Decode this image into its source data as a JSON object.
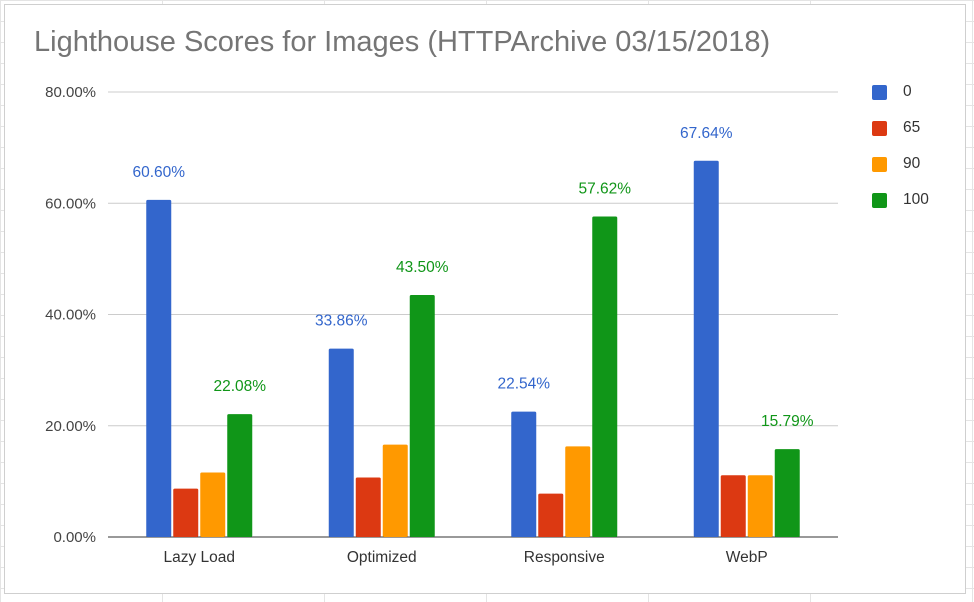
{
  "chart_data": {
    "type": "bar",
    "title": "Lighthouse Scores for Images (HTTPArchive 03/15/2018)",
    "categories": [
      "Lazy Load",
      "Optimized",
      "Responsive",
      "WebP"
    ],
    "series": [
      {
        "name": "0",
        "color": "#3366cc",
        "values": [
          60.6,
          33.86,
          22.54,
          67.64
        ],
        "labels": [
          "60.60%",
          "33.86%",
          "22.54%",
          "67.64%"
        ]
      },
      {
        "name": "65",
        "color": "#dc3912",
        "values": [
          8.7,
          10.7,
          7.8,
          11.1
        ]
      },
      {
        "name": "90",
        "color": "#ff9900",
        "values": [
          11.6,
          16.6,
          16.3,
          11.1
        ]
      },
      {
        "name": "100",
        "color": "#109618",
        "values": [
          22.08,
          43.5,
          57.62,
          15.79
        ],
        "labels": [
          "22.08%",
          "43.50%",
          "57.62%",
          "15.79%"
        ]
      }
    ],
    "ylim": [
      0,
      80
    ],
    "yticks": [
      0,
      20,
      40,
      60,
      80
    ],
    "ytick_labels": [
      "0.00%",
      "20.00%",
      "40.00%",
      "60.00%",
      "80.00%"
    ],
    "label_colors": {
      "0": "#3366cc",
      "100": "#109618"
    },
    "grid": true,
    "legend_position": "right"
  }
}
